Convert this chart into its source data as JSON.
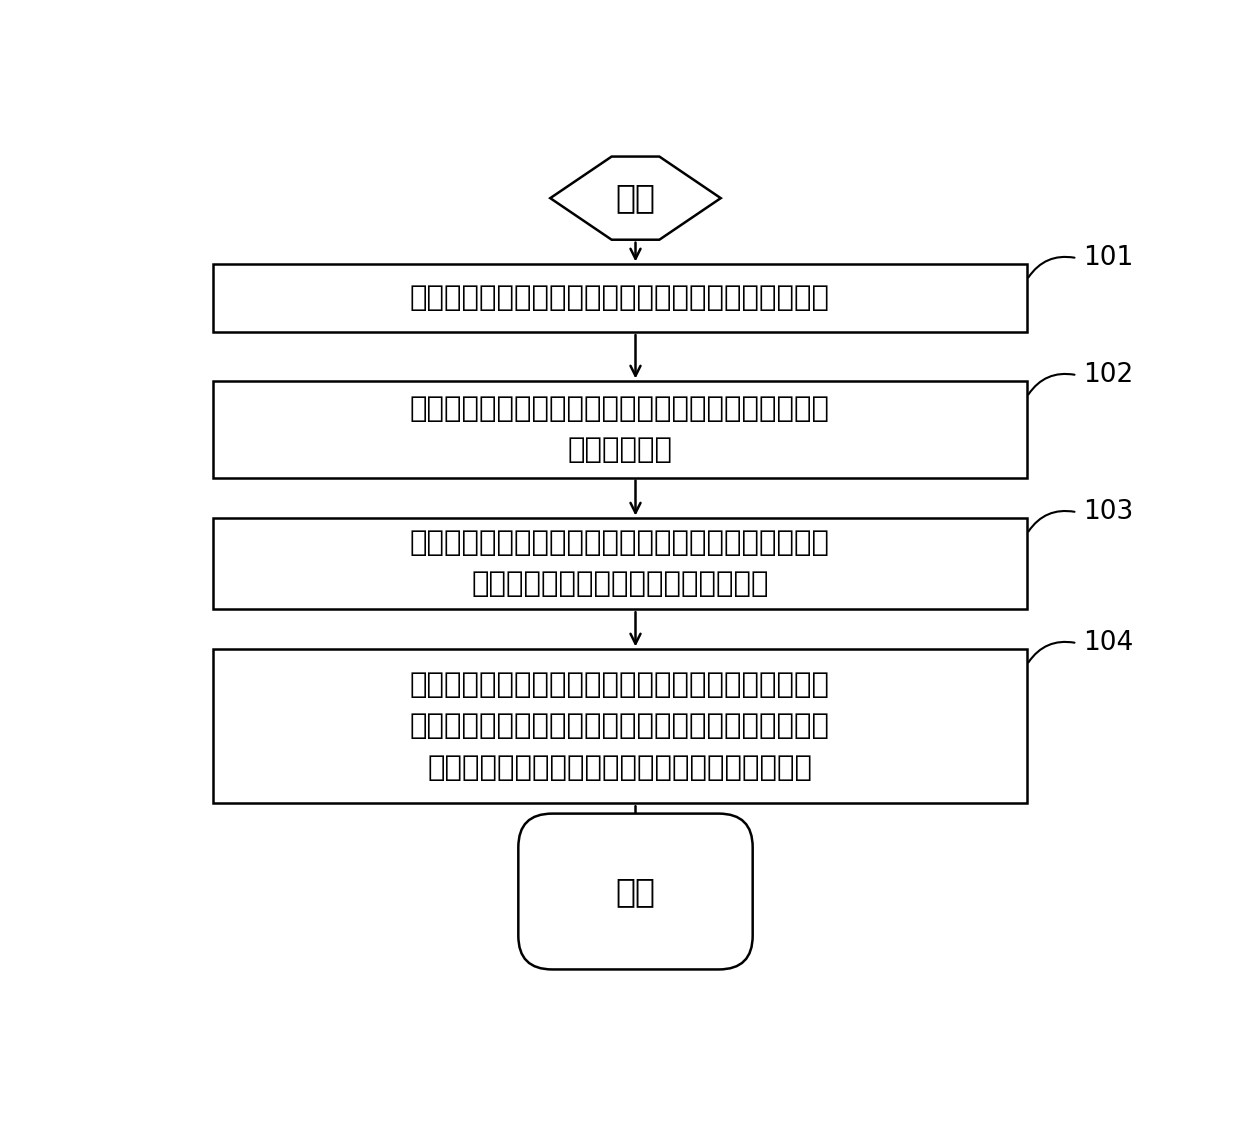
{
  "background_color": "#ffffff",
  "start_label": "开始",
  "end_label": "结束",
  "boxes": [
    {
      "text": "获取电动汽车与其前方目标车辆之间的相对速度和时距",
      "label": "101",
      "nlines": 1
    },
    {
      "text": "根据所述相对速度或所述时距，确定所述电动汽车是否\n存在制动需求",
      "label": "102",
      "nlines": 2
    },
    {
      "text": "若所述电动汽车存在制动需求，则根据所述相对速度，\n确定所述电动汽车的目标制动需求扭矩",
      "label": "103",
      "nlines": 2
    },
    {
      "text": "按照预先设置的用于扭矩控制的模块的优先级，控制对\n应的模块对所述电动汽车进行扭矩控制，使输出至所述\n电动汽车的实际制动扭矩为所述目标制动需求扭矩",
      "label": "104",
      "nlines": 3
    }
  ],
  "fig_width": 12.4,
  "fig_height": 11.25,
  "dpi": 100
}
